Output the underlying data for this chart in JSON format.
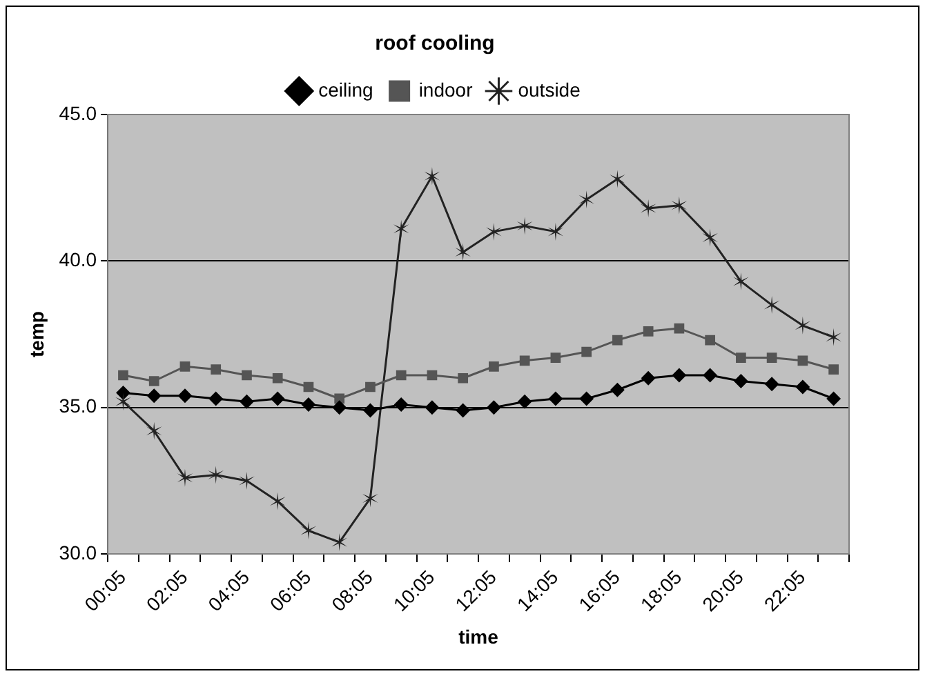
{
  "chart_data": {
    "type": "line",
    "title": "roof cooling",
    "xlabel": "time",
    "ylabel": "temp",
    "categories": [
      "00:05",
      null,
      "02:05",
      null,
      "04:05",
      null,
      "06:05",
      null,
      "08:05",
      null,
      "10:05",
      null,
      "12:05",
      null,
      "14:05",
      null,
      "16:05",
      null,
      "18:05",
      null,
      "20:05",
      null,
      "22:05",
      null
    ],
    "series": [
      {
        "name": "ceiling",
        "color": "#000000",
        "marker": "diamond",
        "values": [
          35.5,
          35.4,
          35.4,
          35.3,
          35.2,
          35.3,
          35.1,
          35.0,
          34.9,
          35.1,
          35.0,
          34.9,
          35.0,
          35.2,
          35.3,
          35.3,
          35.6,
          36.0,
          36.1,
          36.1,
          35.9,
          35.8,
          35.7,
          35.3
        ]
      },
      {
        "name": "indoor",
        "color": "#555555",
        "marker": "square",
        "values": [
          36.1,
          35.9,
          36.4,
          36.3,
          36.1,
          36.0,
          35.7,
          35.3,
          35.7,
          36.1,
          36.1,
          36.0,
          36.4,
          36.6,
          36.7,
          36.9,
          37.3,
          37.6,
          37.7,
          37.3,
          36.7,
          36.7,
          36.6,
          36.3
        ]
      },
      {
        "name": "outside",
        "color": "#222222",
        "marker": "cross",
        "values": [
          35.2,
          34.2,
          32.6,
          32.7,
          32.5,
          31.8,
          30.8,
          30.4,
          31.9,
          41.1,
          42.9,
          40.3,
          41.0,
          41.2,
          41.0,
          42.1,
          42.8,
          41.8,
          41.9,
          40.8,
          39.3,
          38.5,
          37.8,
          37.4
        ]
      }
    ],
    "ylim": [
      30,
      45
    ],
    "yticks": [
      {
        "value": 30,
        "label": "30.0"
      },
      {
        "value": 35,
        "label": "35.0"
      },
      {
        "value": 40,
        "label": "40.0"
      },
      {
        "value": 45,
        "label": "45.0"
      }
    ],
    "grid": "y",
    "legend": "top"
  }
}
